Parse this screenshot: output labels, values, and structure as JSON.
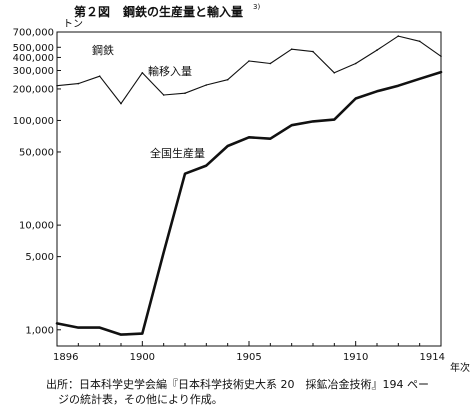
{
  "figure": {
    "number": "第２図",
    "title": "鋼鉄の生産量と輸入量",
    "superscript": "3)"
  },
  "source": {
    "line1": "出所：日本科学史学会編『日本科学技術史大系 20　採鉱冶金技術』194 ペー",
    "line2": "ジの統計表，その他により作成。"
  },
  "chart_data": {
    "type": "line",
    "title": "鋼鉄の生産量と輸入量",
    "ylabel": "トン",
    "xlabel": "年次",
    "yscale": "log",
    "ylim": [
      700,
      700000
    ],
    "xlim": [
      1896,
      1914
    ],
    "grid": false,
    "top_label": "鋼鉄",
    "y_ticks": [
      {
        "value": 700000,
        "label": "700,000"
      },
      {
        "value": 500000,
        "label": "500,000"
      },
      {
        "value": 400000,
        "label": "400,000"
      },
      {
        "value": 300000,
        "label": "300,000"
      },
      {
        "value": 200000,
        "label": "200,000"
      },
      {
        "value": 100000,
        "label": "100,000"
      },
      {
        "value": 50000,
        "label": "50,000"
      },
      {
        "value": 10000,
        "label": "10,000"
      },
      {
        "value": 5000,
        "label": "5,000"
      },
      {
        "value": 1000,
        "label": "1,000"
      }
    ],
    "x_ticks": [
      {
        "value": 1896,
        "label": "1896"
      },
      {
        "value": 1900,
        "label": "1900"
      },
      {
        "value": 1905,
        "label": "1905"
      },
      {
        "value": 1910,
        "label": "1910"
      },
      {
        "value": 1914,
        "label": "1914"
      }
    ],
    "x_minor_ticks": [
      1897,
      1898,
      1899,
      1901,
      1902,
      1903,
      1904,
      1906,
      1907,
      1908,
      1909,
      1911,
      1912,
      1913
    ],
    "series": [
      {
        "name": "輸移入量",
        "color": "#111111",
        "stroke": "thin",
        "x": [
          1896,
          1897,
          1898,
          1899,
          1900,
          1901,
          1902,
          1903,
          1904,
          1905,
          1906,
          1907,
          1908,
          1909,
          1910,
          1911,
          1912,
          1913,
          1914
        ],
        "y": [
          215000,
          225000,
          265000,
          145000,
          285000,
          175000,
          182000,
          218000,
          245000,
          370000,
          350000,
          480000,
          455000,
          285000,
          350000,
          470000,
          640000,
          570000,
          410000
        ]
      },
      {
        "name": "全国生産量",
        "color": "#111111",
        "stroke": "thick",
        "x": [
          1896,
          1897,
          1898,
          1899,
          1900,
          1901,
          1902,
          1903,
          1904,
          1905,
          1906,
          1907,
          1908,
          1909,
          1910,
          1911,
          1912,
          1913,
          1914
        ],
        "y": [
          1150,
          1050,
          1050,
          900,
          920,
          5500,
          31000,
          37000,
          57000,
          69000,
          67000,
          90000,
          98000,
          102000,
          162000,
          190000,
          215000,
          250000,
          290000
        ]
      }
    ]
  }
}
